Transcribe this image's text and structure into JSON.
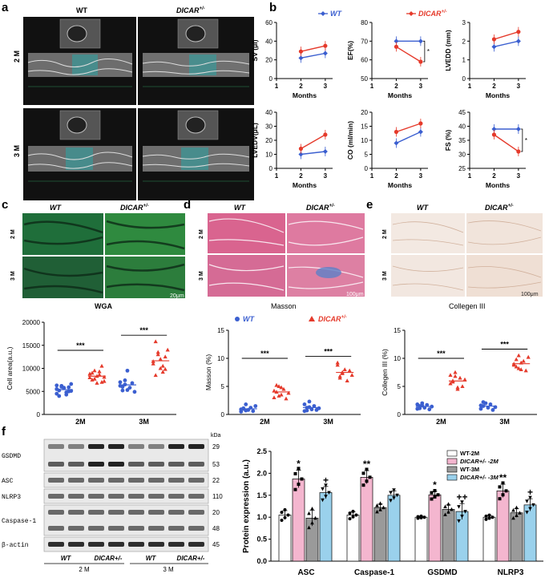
{
  "panels": {
    "a": "a",
    "b": "b",
    "c": "c",
    "d": "d",
    "e": "e",
    "f": "f"
  },
  "groups": {
    "wt": "WT",
    "dicar": "DICAR",
    "dicar_sup": "+/-",
    "m2": "2 M",
    "m3": "3 M",
    "wt_legend": "WT",
    "dicar_legend": "DICAR"
  },
  "colors": {
    "wt": "#3b5fd0",
    "dicar": "#e53a2b",
    "bar_wt2": "#ffffff",
    "bar_dicar2": "#f4b6cf",
    "bar_wt3": "#9a9a9a",
    "bar_dicar3": "#9ad1ec"
  },
  "histology": {
    "c_caption": "WGA",
    "c_scale": "20μm",
    "d_caption": "Masson",
    "d_scale": "100μm",
    "e_caption": "Collegen III",
    "e_scale": "100μm"
  },
  "blot": {
    "kda": "kDa",
    "rows": [
      {
        "name": "GSDMD",
        "kda": [
          "29",
          "53"
        ]
      },
      {
        "name": "ASC",
        "kda": [
          "22"
        ]
      },
      {
        "name": "NLRP3",
        "kda": [
          "110"
        ]
      },
      {
        "name": "Caspase-1",
        "kda": [
          "20",
          "48"
        ]
      },
      {
        "name": "β-actin",
        "kda": [
          "45"
        ]
      }
    ],
    "lane_labels": [
      "WT",
      "DICAR+/-",
      "WT",
      "DICAR+/-"
    ],
    "time_labels": [
      "2 M",
      "3 M"
    ]
  },
  "chart_data": [
    {
      "id": "b-sv",
      "type": "line",
      "ylabel": "SV (μl)",
      "xlabel": "Months",
      "x": [
        2,
        3
      ],
      "xlim": [
        1,
        3.3
      ],
      "xticks": [
        1,
        2,
        3
      ],
      "ylim": [
        0,
        60
      ],
      "yticks": [
        0,
        20,
        40,
        60
      ],
      "series": [
        {
          "name": "WT",
          "values": [
            22,
            27
          ]
        },
        {
          "name": "DICAR+/-",
          "values": [
            29,
            35
          ]
        }
      ]
    },
    {
      "id": "b-ef",
      "type": "line",
      "ylabel": "EF(%)",
      "xlabel": "Months",
      "x": [
        2,
        3
      ],
      "xlim": [
        1,
        3.3
      ],
      "xticks": [
        1,
        2,
        3
      ],
      "ylim": [
        50,
        80
      ],
      "yticks": [
        50,
        60,
        70,
        80
      ],
      "series": [
        {
          "name": "WT",
          "values": [
            70,
            70
          ]
        },
        {
          "name": "DICAR+/-",
          "values": [
            67,
            59
          ]
        }
      ],
      "annotation": "*"
    },
    {
      "id": "b-lvedd",
      "type": "line",
      "ylabel": "LVEDD (mm)",
      "xlabel": "Months",
      "x": [
        2,
        3
      ],
      "xlim": [
        1,
        3.3
      ],
      "xticks": [
        1,
        2,
        3
      ],
      "ylim": [
        0,
        3
      ],
      "yticks": [
        0,
        1,
        2,
        3
      ],
      "series": [
        {
          "name": "WT",
          "values": [
            1.7,
            2.0
          ]
        },
        {
          "name": "DICAR+/-",
          "values": [
            2.1,
            2.5
          ]
        }
      ]
    },
    {
      "id": "b-lvedv",
      "type": "line",
      "ylabel": "LVEDV(μL)",
      "xlabel": "Months",
      "x": [
        2,
        3
      ],
      "xlim": [
        1,
        3.3
      ],
      "xticks": [
        1,
        2,
        3
      ],
      "ylim": [
        0,
        40
      ],
      "yticks": [
        0,
        10,
        20,
        30,
        40
      ],
      "series": [
        {
          "name": "WT",
          "values": [
            10,
            12
          ]
        },
        {
          "name": "DICAR+/-",
          "values": [
            14,
            24
          ]
        }
      ]
    },
    {
      "id": "b-co",
      "type": "line",
      "ylabel": "CO (ml/min)",
      "xlabel": "Months",
      "x": [
        2,
        3
      ],
      "xlim": [
        1,
        3.3
      ],
      "xticks": [
        1,
        2,
        3
      ],
      "ylim": [
        0,
        20
      ],
      "yticks": [
        0,
        5,
        10,
        15,
        20
      ],
      "series": [
        {
          "name": "WT",
          "values": [
            9,
            13
          ]
        },
        {
          "name": "DICAR+/-",
          "values": [
            13,
            16
          ]
        }
      ]
    },
    {
      "id": "b-fs",
      "type": "line",
      "ylabel": "FS (%)",
      "xlabel": "Months",
      "x": [
        2,
        3
      ],
      "xlim": [
        1,
        3.3
      ],
      "xticks": [
        1,
        2,
        3
      ],
      "ylim": [
        25,
        45
      ],
      "yticks": [
        25,
        30,
        35,
        40,
        45
      ],
      "series": [
        {
          "name": "WT",
          "values": [
            39,
            39
          ]
        },
        {
          "name": "DICAR+/-",
          "values": [
            37,
            31
          ]
        }
      ],
      "annotation": "*"
    },
    {
      "id": "c-scatter",
      "type": "scatter",
      "ylabel": "Cell area(a.u.)",
      "categories": [
        "2M",
        "3M"
      ],
      "ylim": [
        0,
        20000
      ],
      "yticks": [
        0,
        5000,
        10000,
        15000,
        20000
      ],
      "groups": [
        {
          "name": "WT-2M",
          "values": [
            5500,
            4000,
            6200,
            5800,
            4800,
            5000,
            6600,
            4500,
            5200,
            6000,
            5700,
            4300,
            5900,
            5100,
            6300
          ]
        },
        {
          "name": "DICAR-2M",
          "values": [
            8000,
            7500,
            9500,
            6800,
            8600,
            10500,
            7200,
            8800,
            9000,
            7700,
            8300,
            9300,
            7000,
            8100
          ]
        },
        {
          "name": "WT-3M",
          "values": [
            6200,
            5200,
            7400,
            9500,
            5800,
            6800,
            4900,
            7000,
            6000,
            6500,
            5300
          ]
        },
        {
          "name": "DICAR-3M",
          "values": [
            11500,
            15800,
            13000,
            10000,
            9200,
            12500,
            14000,
            11000,
            8500,
            13500,
            12000,
            10500,
            9800
          ]
        }
      ],
      "significance": [
        "***",
        "***"
      ]
    },
    {
      "id": "d-scatter",
      "type": "scatter",
      "ylabel": "Masson (%)",
      "categories": [
        "2M",
        "3M"
      ],
      "ylim": [
        0,
        15
      ],
      "yticks": [
        0,
        5,
        10,
        15
      ],
      "groups": [
        {
          "name": "WT-2M",
          "values": [
            0.5,
            1.0,
            1.8,
            0.8,
            1.2,
            0.6,
            1.5,
            0.9,
            1.1,
            0.7
          ]
        },
        {
          "name": "DICAR-2M",
          "values": [
            3.0,
            4.0,
            5.0,
            3.5,
            4.5,
            2.8,
            3.8,
            4.2,
            5.2,
            3.3,
            4.8
          ]
        },
        {
          "name": "WT-3M",
          "values": [
            0.6,
            1.2,
            2.3,
            0.9,
            1.5,
            0.8,
            1.1,
            1.8,
            0.7,
            1.3
          ]
        },
        {
          "name": "DICAR-3M",
          "values": [
            8.8,
            6.5,
            7.3,
            8.0,
            6.0,
            7.8,
            7.0,
            9.2,
            6.8,
            7.5
          ]
        }
      ],
      "significance": [
        "***",
        "***"
      ]
    },
    {
      "id": "e-scatter",
      "type": "scatter",
      "ylabel": "Collegen III (%)",
      "categories": [
        "2M",
        "3M"
      ],
      "ylim": [
        0,
        15
      ],
      "yticks": [
        0,
        5,
        10,
        15
      ],
      "groups": [
        {
          "name": "WT-2M",
          "values": [
            1.0,
            1.5,
            2.0,
            1.2,
            1.7,
            0.9,
            1.4,
            1.8,
            1.1,
            1.6
          ]
        },
        {
          "name": "DICAR-2M",
          "values": [
            5.5,
            6.0,
            7.5,
            4.5,
            6.5,
            5.0,
            6.2,
            7.0,
            5.8,
            6.8,
            4.8
          ]
        },
        {
          "name": "WT-3M",
          "values": [
            1.0,
            1.5,
            2.0,
            1.2,
            1.8,
            0.8,
            1.3,
            1.6,
            2.2
          ]
        },
        {
          "name": "DICAR-3M",
          "values": [
            9.0,
            8.5,
            10.5,
            8.0,
            9.5,
            7.8,
            10.2,
            8.8,
            9.8,
            8.2,
            9.2
          ]
        }
      ],
      "significance": [
        "***",
        "***"
      ]
    },
    {
      "id": "f-bars",
      "type": "bar",
      "ylabel": "Protein expression (a.u.)",
      "categories": [
        "ASC",
        "Caspase-1",
        "GSDMD",
        "NLRP3"
      ],
      "ylim": [
        0,
        2.5
      ],
      "yticks": [
        0.0,
        0.5,
        1.0,
        1.5,
        2.0,
        2.5
      ],
      "series": [
        {
          "name": "WT-2M",
          "values": [
            1.05,
            1.05,
            1.0,
            1.0
          ],
          "err": [
            0.1,
            0.07,
            0.02,
            0.04
          ]
        },
        {
          "name": "DICAR+/- -2M",
          "values": [
            1.87,
            1.91,
            1.51,
            1.6
          ],
          "err": [
            0.2,
            0.15,
            0.08,
            0.15
          ]
        },
        {
          "name": "WT-3M",
          "values": [
            0.98,
            1.22,
            1.18,
            1.1
          ],
          "err": [
            0.18,
            0.08,
            0.1,
            0.1
          ]
        },
        {
          "name": "DICAR+/- -3M",
          "values": [
            1.56,
            1.5,
            1.13,
            1.28
          ],
          "err": [
            0.14,
            0.1,
            0.18,
            0.14
          ]
        }
      ],
      "legend": [
        "WT-2M",
        "DICAR+/- -2M",
        "WT-3M",
        "DICAR+/- -3M"
      ],
      "marks": [
        [
          "",
          "*",
          "",
          "+"
        ],
        [
          "",
          "**",
          "",
          ""
        ],
        [
          "",
          "*",
          "",
          "++"
        ],
        [
          "",
          "**",
          "",
          "+"
        ]
      ]
    }
  ]
}
